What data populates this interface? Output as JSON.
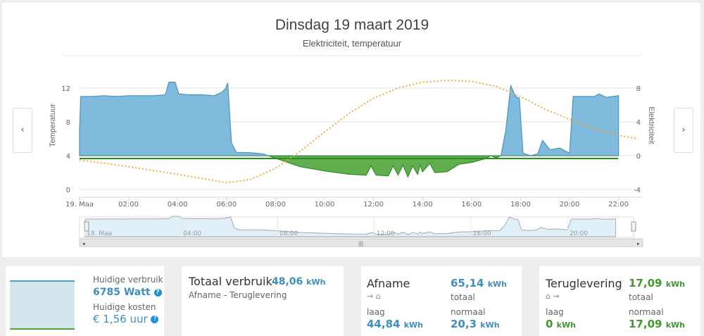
{
  "header": {
    "title": "Dinsdag 19 maart 2019",
    "subtitle": "Elektriciteit, temperatuur",
    "prev": "‹",
    "next": "›"
  },
  "chart_data": {
    "type": "area",
    "title": "Dinsdag 19 maart 2019",
    "subtitle": "Elektriciteit, temperatuur",
    "x_ticks": [
      "19. Maa",
      "02:00",
      "04:00",
      "06:00",
      "08:00",
      "10:00",
      "12:00",
      "14:00",
      "16:00",
      "18:00",
      "20:00",
      "22:00"
    ],
    "y_left": {
      "label": "Temperatuur",
      "ticks": [
        "0",
        "4",
        "8",
        "12"
      ],
      "range": [
        0,
        12
      ]
    },
    "y_right": {
      "label": "Elektriciteit",
      "ticks": [
        "-4",
        "0",
        "4",
        "8"
      ],
      "range": [
        -4,
        8
      ]
    },
    "grid": true,
    "series": [
      {
        "name": "Elektriciteit",
        "axis": "right",
        "colors": {
          "positive": "#6aaed6",
          "negative": "#4fa53a"
        },
        "x_hours": [
          0,
          0.05,
          0.5,
          1,
          1.5,
          2,
          2.5,
          3,
          3.5,
          3.65,
          3.9,
          4.05,
          4.5,
          5,
          5.5,
          5.8,
          5.95,
          6.05,
          6.2,
          6.4,
          7,
          7.5,
          8,
          8.5,
          9,
          10,
          11,
          11.7,
          11.9,
          12.1,
          12.6,
          12.8,
          13,
          13.2,
          13.4,
          13.6,
          13.8,
          13.9,
          14,
          14.3,
          14.5,
          15,
          15.5,
          16,
          16.5,
          16.8,
          17,
          17.2,
          17.4,
          17.6,
          17.8,
          17.95,
          18.1,
          18.4,
          18.7,
          18.9,
          19.2,
          19.6,
          20,
          20.15,
          21,
          21.2,
          21.5,
          22
        ],
        "values": [
          3,
          7.0,
          7.0,
          7.1,
          7.0,
          7.1,
          7.1,
          7.1,
          7.2,
          8.7,
          8.7,
          7.3,
          7.2,
          7.2,
          7.1,
          7.5,
          7.9,
          8.6,
          1.5,
          0.4,
          0.35,
          0.2,
          -0.3,
          -0.8,
          -1.3,
          -1.8,
          -2.2,
          -2.3,
          -1.2,
          -2.3,
          -2.4,
          -1.2,
          -2.3,
          -1.1,
          -2.5,
          -1.2,
          -2.2,
          -1.1,
          -1.9,
          -0.9,
          -2.0,
          -1.9,
          -1.0,
          -0.8,
          -0.4,
          0,
          -0.25,
          0,
          3,
          8.3,
          7.0,
          6.8,
          0.3,
          0,
          0.2,
          1.8,
          0.7,
          0.9,
          0.3,
          7.0,
          7.0,
          7.3,
          6.9,
          7.1
        ]
      },
      {
        "name": "Temperatuur",
        "axis": "left",
        "color": "#f7a935",
        "style": "dotted",
        "x_hours": [
          0,
          2,
          4,
          6,
          7,
          8,
          9,
          10,
          11,
          12,
          13,
          14,
          15,
          16,
          17,
          18,
          19,
          20,
          21,
          22,
          22.8
        ],
        "values": [
          3.5,
          2.7,
          1.8,
          0.8,
          1.2,
          2.5,
          4.5,
          6.8,
          9,
          10.8,
          12,
          12.7,
          12.9,
          12.8,
          12.2,
          11,
          9.5,
          8.3,
          7.2,
          6.4,
          6.0
        ]
      }
    ],
    "navigator_labels": [
      "19. Maa",
      "04:00",
      "08:00",
      "12:00",
      "16:00",
      "20:00"
    ]
  },
  "cards": {
    "current": {
      "usage_label": "Huidige verbruik",
      "usage_value": "6785 Watt",
      "cost_label": "Huidige kosten",
      "cost_value": "€ 1,56 uur",
      "help": "?"
    },
    "total": {
      "title": "Totaal verbruik",
      "value": "48,06",
      "unit": "kWh",
      "sub": "Afname - Teruglevering"
    },
    "afname": {
      "title": "Afname",
      "icon": "→ ⌂",
      "total_value": "65,14",
      "total_label": "totaal",
      "low_label": "laag",
      "low_value": "44,84",
      "normal_label": "normaal",
      "normal_value": "20,3",
      "unit": "kWh"
    },
    "teruglevering": {
      "title": "Teruglevering",
      "icon": "⌂ →",
      "total_value": "17,09",
      "total_label": "totaal",
      "low_label": "laag",
      "low_value": "0",
      "normal_label": "normaal",
      "normal_value": "17,09",
      "unit": "kWh"
    }
  }
}
